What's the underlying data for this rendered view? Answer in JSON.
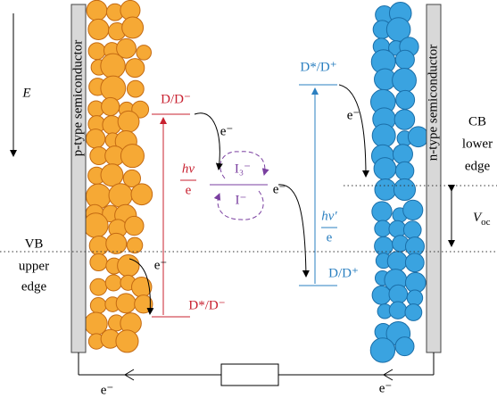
{
  "left_electrode": {
    "label": "p-type semiconductor"
  },
  "right_electrode": {
    "label": "n-type semiconductor"
  },
  "energy_axis": {
    "label": "E"
  },
  "left_dye": {
    "ground": "D/D⁻",
    "excited": "D*/D⁻",
    "photon": "hν",
    "photon_unit": "e"
  },
  "redox": {
    "upper": "I₃⁻",
    "lower": "I⁻"
  },
  "right_dye": {
    "excited": "D*/D⁺",
    "ground": "D/D⁺",
    "photon": "hν′",
    "photon_unit": "e"
  },
  "electron_labels": [
    "e⁻",
    "e⁻",
    "e⁻",
    "e⁻",
    "e⁻",
    "e⁻"
  ],
  "vb_label": [
    "VB",
    "upper",
    "edge"
  ],
  "cb_label": [
    "CB",
    "lower",
    "edge"
  ],
  "voc": {
    "symbol": "V",
    "subscript": "oc"
  }
}
